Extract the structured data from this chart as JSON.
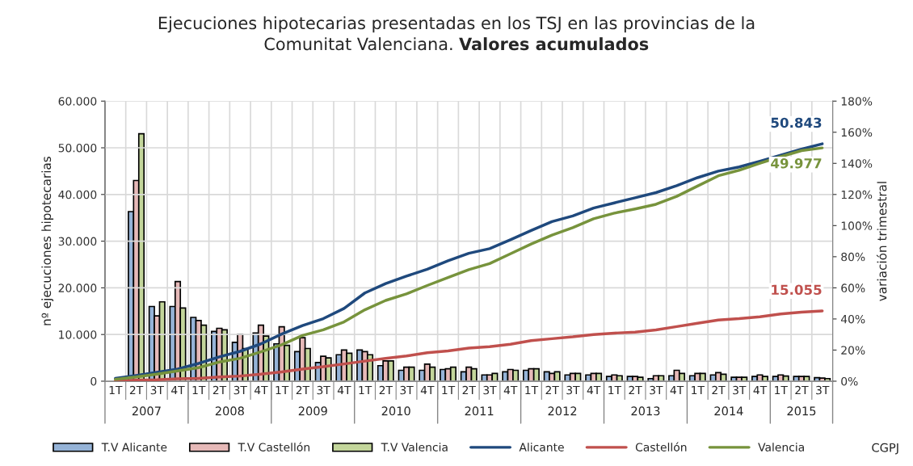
{
  "chart_data": {
    "type": "bar",
    "title": "Ejecuciones hipotecarias presentadas en los TSJ en las provincias de la\nComunitat Valenciana.",
    "subtitle": "Valores acumulados",
    "ylabel": "nº ejecuciones hipotecarias",
    "y2label": "variación trimestral",
    "categories": [
      "1T",
      "2T",
      "3T",
      "4T",
      "1T",
      "2T",
      "3T",
      "4T",
      "1T",
      "2T",
      "3T",
      "4T",
      "1T",
      "2T",
      "3T",
      "4T",
      "1T",
      "2T",
      "3T",
      "4T",
      "1T",
      "2T",
      "3T",
      "4T",
      "1T",
      "2T",
      "3T",
      "4T",
      "1T",
      "2T",
      "3T",
      "4T",
      "1T",
      "2T",
      "3T"
    ],
    "annotations": [
      "2007",
      "2008",
      "2009",
      "2010",
      "2011",
      "2012",
      "2013",
      "2014",
      "2015",
      "CGPJ"
    ],
    "series": [
      {
        "name": "T.V Alicante",
        "axis": "y2",
        "color": "#95b3d7",
        "values": [
          null,
          109,
          48,
          48,
          41,
          32,
          25,
          31,
          24,
          19,
          12,
          17,
          20,
          10,
          7,
          7,
          7.5,
          6,
          4,
          6,
          7,
          6,
          4,
          4,
          3,
          3,
          1.7,
          3.5,
          3.5,
          4,
          2.5,
          3,
          3,
          3,
          2.3
        ]
      },
      {
        "name": "T.V Castellón",
        "axis": "y2",
        "color": "#e6b9b8",
        "values": [
          null,
          129,
          42,
          64,
          39,
          34,
          30,
          36,
          35,
          28,
          16,
          20,
          19,
          13,
          9,
          11,
          8,
          9,
          4,
          7.5,
          8,
          5,
          5,
          5,
          4,
          3,
          3.5,
          7,
          5,
          5.5,
          2.5,
          4,
          4,
          3,
          2
        ]
      },
      {
        "name": "T.V Valencia",
        "axis": "y2",
        "color": "#c3d69b",
        "values": [
          null,
          159,
          51,
          47,
          36,
          33,
          21,
          29,
          23,
          21,
          15,
          18,
          17,
          13,
          9,
          9,
          9,
          8,
          5,
          7,
          8,
          6,
          5,
          5,
          3.5,
          2.5,
          3.5,
          5,
          5,
          4.5,
          2.5,
          3,
          3.3,
          3,
          1.7
        ]
      },
      {
        "name": "Alicante",
        "type": "line",
        "color": "#1f497d",
        "values": [
          600,
          1200,
          1900,
          2600,
          3800,
          5200,
          6400,
          8000,
          10100,
          11900,
          13400,
          15600,
          18900,
          20900,
          22500,
          24000,
          25800,
          27400,
          28400,
          30300,
          32300,
          34200,
          35400,
          37100,
          38200,
          39300,
          40400,
          41900,
          43600,
          45000,
          45900,
          47100,
          48400,
          49700,
          50843
        ],
        "value_labels": [
          null,
          null,
          null,
          null,
          null,
          null,
          null,
          null,
          null,
          null,
          null,
          null,
          null,
          null,
          null,
          null,
          null,
          null,
          null,
          null,
          null,
          null,
          null,
          null,
          null,
          null,
          null,
          null,
          null,
          null,
          null,
          null,
          null,
          null,
          "50.843"
        ]
      },
      {
        "name": "Castellón",
        "type": "line",
        "color": "#c0504d",
        "values": [
          100,
          200,
          300,
          500,
          600,
          900,
          1100,
          1500,
          2000,
          2600,
          3100,
          3700,
          4300,
          4900,
          5400,
          6100,
          6500,
          7100,
          7400,
          7900,
          8700,
          9100,
          9500,
          10000,
          10300,
          10500,
          11000,
          11700,
          12400,
          13100,
          13400,
          13800,
          14400,
          14800,
          15055
        ],
        "value_labels": [
          null,
          null,
          null,
          null,
          null,
          null,
          null,
          null,
          null,
          null,
          null,
          null,
          null,
          null,
          null,
          null,
          null,
          null,
          null,
          null,
          null,
          null,
          null,
          null,
          null,
          null,
          null,
          null,
          null,
          null,
          null,
          null,
          null,
          null,
          "15.055"
        ]
      },
      {
        "name": "Valencia",
        "type": "line",
        "color": "#77933c",
        "values": [
          400,
          900,
          1500,
          2200,
          2900,
          4100,
          4900,
          6300,
          7800,
          9800,
          11000,
          12700,
          15300,
          17300,
          18700,
          20500,
          22200,
          23900,
          25200,
          27300,
          29400,
          31300,
          32900,
          34800,
          36000,
          36900,
          37900,
          39600,
          41800,
          44000,
          45200,
          46700,
          48100,
          49400,
          49977
        ],
        "value_labels": [
          null,
          null,
          null,
          null,
          null,
          null,
          null,
          null,
          null,
          null,
          null,
          null,
          null,
          null,
          null,
          null,
          null,
          null,
          null,
          null,
          null,
          null,
          null,
          null,
          null,
          null,
          null,
          null,
          null,
          null,
          null,
          null,
          null,
          null,
          "49.977"
        ]
      }
    ],
    "ylim": [
      0,
      60000
    ],
    "yticks": [
      0,
      {
        "value": 10000,
        "label": "10.000"
      },
      {
        "value": 20000,
        "label": "20.000"
      },
      {
        "value": 30000,
        "label": "30.000"
      },
      {
        "value": 40000,
        "label": "40.000"
      },
      {
        "value": 50000,
        "label": "50.000"
      },
      {
        "value": 60000,
        "label": "60.000"
      }
    ],
    "y2lim": [
      0,
      180
    ],
    "y2ticks": [
      {
        "value": 0,
        "label": "0%"
      },
      {
        "value": 20,
        "label": "20%"
      },
      {
        "value": 40,
        "label": "40%"
      },
      {
        "value": 60,
        "label": "60%"
      },
      {
        "value": 80,
        "label": "80%"
      },
      {
        "value": 100,
        "label": "100%"
      },
      {
        "value": 120,
        "label": "120%"
      },
      {
        "value": 140,
        "label": "140%"
      },
      {
        "value": 160,
        "label": "160%"
      },
      {
        "value": 180,
        "label": "180%"
      }
    ],
    "grid": true,
    "legend": "bottom"
  }
}
